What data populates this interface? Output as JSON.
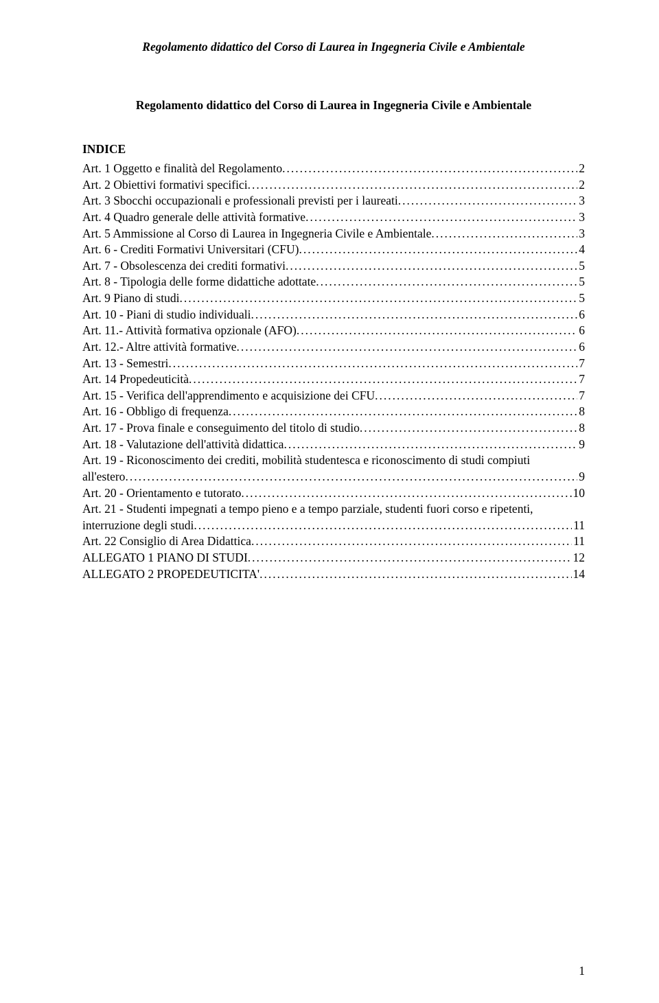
{
  "running_head": "Regolamento didattico del Corso di Laurea in Ingegneria Civile e Ambientale",
  "doc_title": "Regolamento didattico del Corso di Laurea in Ingegneria Civile e Ambientale",
  "indice_label": "INDICE",
  "page_number": "1",
  "toc": [
    {
      "text": "Art. 1 Oggetto e finalità del Regolamento",
      "page": "2"
    },
    {
      "text": "Art. 2 Obiettivi formativi specifici",
      "page": "2"
    },
    {
      "text": "Art. 3 Sbocchi occupazionali e professionali previsti per i laureati",
      "page": "3"
    },
    {
      "text": "Art. 4 Quadro generale delle attività formative",
      "page": "3"
    },
    {
      "text": "Art. 5 Ammissione al Corso di Laurea in Ingegneria Civile e Ambientale",
      "page": "3"
    },
    {
      "text": "Art. 6 - Crediti Formativi Universitari (CFU)",
      "page": "4"
    },
    {
      "text": "Art. 7 - Obsolescenza dei crediti formativi",
      "page": "5"
    },
    {
      "text": "Art. 8 - Tipologia delle forme didattiche adottate",
      "page": "5"
    },
    {
      "text": "Art. 9 Piano di studi",
      "page": "5"
    },
    {
      "text": "Art. 10 - Piani di studio individuali",
      "page": "6"
    },
    {
      "text": "Art. 11.- Attività formativa opzionale (AFO)",
      "page": "6"
    },
    {
      "text": "Art. 12.- Altre attività formative",
      "page": "6"
    },
    {
      "text": "Art. 13 - Semestri",
      "page": "7"
    },
    {
      "text": "Art. 14 Propedeuticità",
      "page": "7"
    },
    {
      "text": "Art. 15 - Verifica dell'apprendimento e acquisizione dei CFU",
      "page": "7"
    },
    {
      "text": "Art. 16 - Obbligo di frequenza",
      "page": "8"
    },
    {
      "text": "Art. 17 - Prova finale e conseguimento del titolo di studio",
      "page": "8"
    },
    {
      "text": "Art. 18 - Valutazione dell'attività didattica",
      "page": "9"
    },
    {
      "text_line1": "Art. 19 - Riconoscimento dei crediti, mobilità studentesca e riconoscimento di studi compiuti",
      "text_line2": "all'estero",
      "page": "9",
      "wrap": true
    },
    {
      "text": "Art. 20 - Orientamento e tutorato",
      "page": "10"
    },
    {
      "text_line1": "Art. 21 - Studenti impegnati a tempo pieno e a tempo parziale, studenti fuori corso e ripetenti,",
      "text_line2": "interruzione degli studi",
      "page": "11",
      "wrap": true
    },
    {
      "text": "Art. 22 Consiglio di Area Didattica",
      "page": "11"
    },
    {
      "text": "ALLEGATO 1 PIANO DI STUDI",
      "page": "12"
    },
    {
      "text": "ALLEGATO 2 PROPEDEUTICITA'",
      "page": "14"
    }
  ]
}
